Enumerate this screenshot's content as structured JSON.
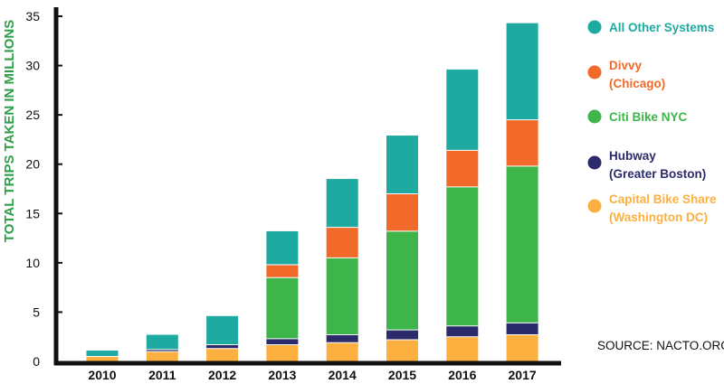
{
  "chart_data": {
    "type": "bar",
    "stacked": true,
    "categories": [
      "2010",
      "2011",
      "2012",
      "2013",
      "2014",
      "2015",
      "2016",
      "2017"
    ],
    "series": [
      {
        "name": "Capital Bike Share (Washington DC)",
        "color": "#fbb040",
        "values": [
          0.5,
          1.0,
          1.3,
          1.7,
          1.9,
          2.2,
          2.5,
          2.7
        ]
      },
      {
        "name": "Hubway (Greater Boston)",
        "color": "#2b2a6b",
        "values": [
          0,
          0.2,
          0.4,
          0.6,
          0.8,
          1.0,
          1.1,
          1.2
        ]
      },
      {
        "name": "Citi Bike NYC",
        "color": "#3db54a",
        "values": [
          0,
          0,
          0,
          6.2,
          7.8,
          10.0,
          14.1,
          15.9
        ]
      },
      {
        "name": "Divvy (Chicago)",
        "color": "#f26a2a",
        "values": [
          0,
          0,
          0,
          1.3,
          3.1,
          3.8,
          3.7,
          4.7
        ]
      },
      {
        "name": "All Other Systems",
        "color": "#1eaaa0",
        "values": [
          0.6,
          1.5,
          2.9,
          3.4,
          4.9,
          5.9,
          8.2,
          9.8
        ]
      }
    ],
    "ylabel": "TOTAL TRIPS TAKEN IN MILLIONS",
    "xlabel": "",
    "ylim": [
      0,
      35
    ],
    "yticks": [
      0,
      5,
      10,
      15,
      20,
      25,
      30,
      35
    ],
    "grid": false,
    "legend_position": "right",
    "legend": [
      {
        "lines": [
          "All Other Systems"
        ],
        "color": "#1eaaa0"
      },
      {
        "lines": [
          "Divvy",
          "(Chicago)"
        ],
        "color": "#f26a2a"
      },
      {
        "lines": [
          "Citi Bike NYC"
        ],
        "color": "#3db54a"
      },
      {
        "lines": [
          "Hubway",
          "(Greater Boston)"
        ],
        "color": "#2b2a6b"
      },
      {
        "lines": [
          "Capital Bike Share",
          "(Washington DC)"
        ],
        "color": "#fbb040"
      }
    ],
    "source": "SOURCE: NACTO.ORG"
  }
}
